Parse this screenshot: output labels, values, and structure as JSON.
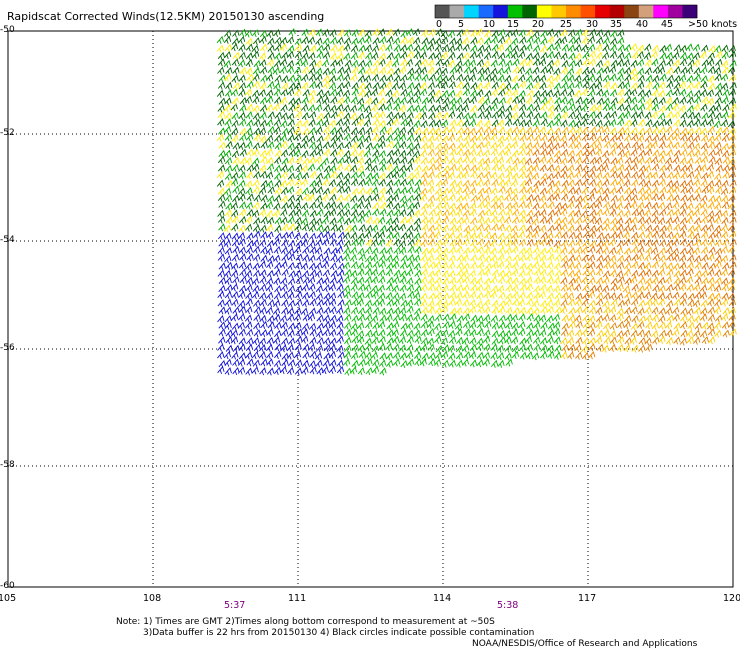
{
  "title": "Rapidscat Corrected Winds(12.5KM) 20150130 ascending",
  "legend": {
    "colors": [
      "#555555",
      "#aaaaaa",
      "#00d5ff",
      "#1a6aff",
      "#1414dc",
      "#00c000",
      "#006400",
      "#ffff00",
      "#ffc800",
      "#ff8c00",
      "#ff5000",
      "#e60000",
      "#b40000",
      "#8b4513",
      "#d2a07a",
      "#ff00ff",
      "#a000a0",
      "#3c0078"
    ],
    "labels": [
      "0",
      "5",
      "10",
      "15",
      "20",
      "25",
      "30",
      "35",
      "40",
      "45",
      ">50 knots"
    ]
  },
  "axes": {
    "lon_ticks": [
      "105",
      "108",
      "111",
      "114",
      "117",
      "120"
    ],
    "lat_ticks": [
      "-50",
      "-52",
      "-54",
      "-56",
      "-58",
      "-60"
    ]
  },
  "times": [
    "5:37",
    "5:38"
  ],
  "notes": {
    "line1": "Note: 1) Times are GMT 2)Times along bottom correspond to measurement at ~50S",
    "line2": "3)Data buffer is 22 hrs from 20150130 4) Black circles indicate possible contamination",
    "credit": "NOAA/NESDIS/Office of Research and Applications"
  }
}
